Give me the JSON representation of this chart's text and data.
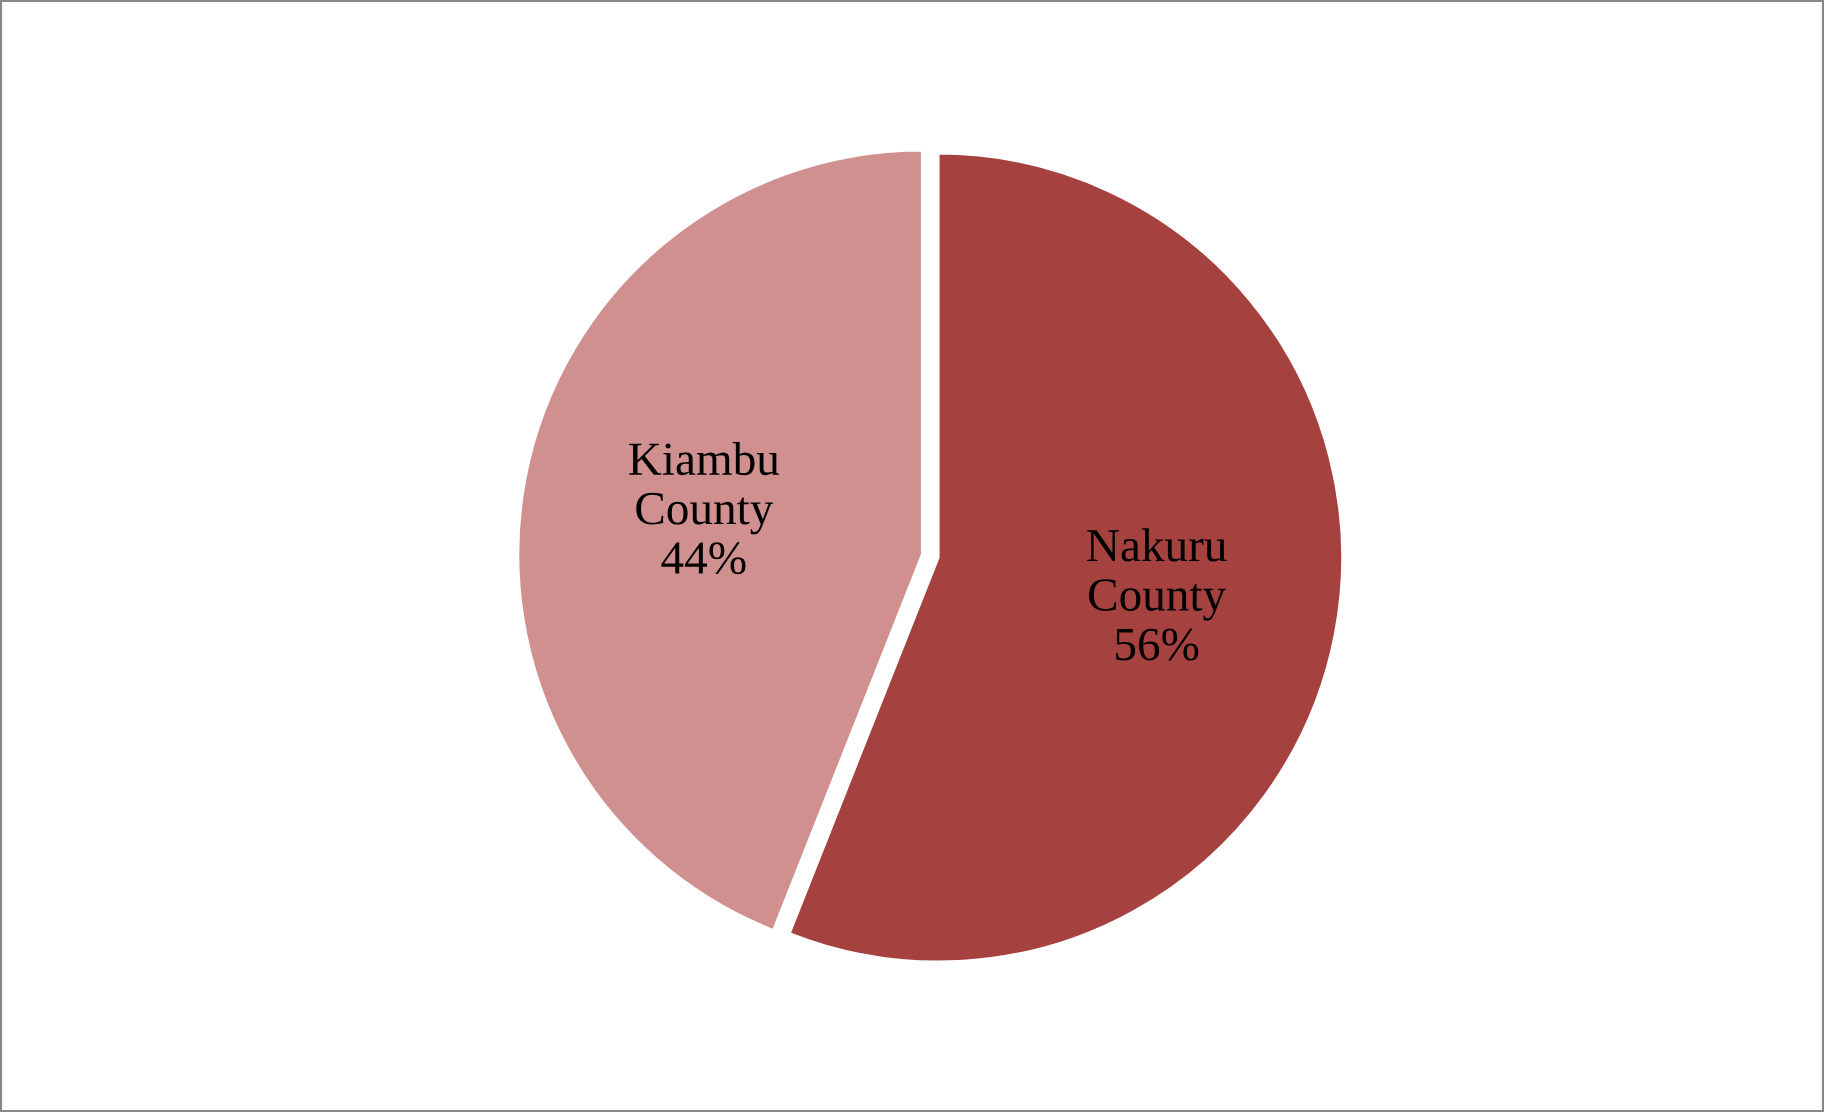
{
  "chart_data": {
    "type": "pie",
    "categories": [
      "Nakuru County",
      "Kiambu County"
    ],
    "values": [
      56,
      44
    ],
    "value_labels": [
      "56%",
      "44%"
    ],
    "colors": [
      "#a5423f",
      "#d09090"
    ]
  }
}
